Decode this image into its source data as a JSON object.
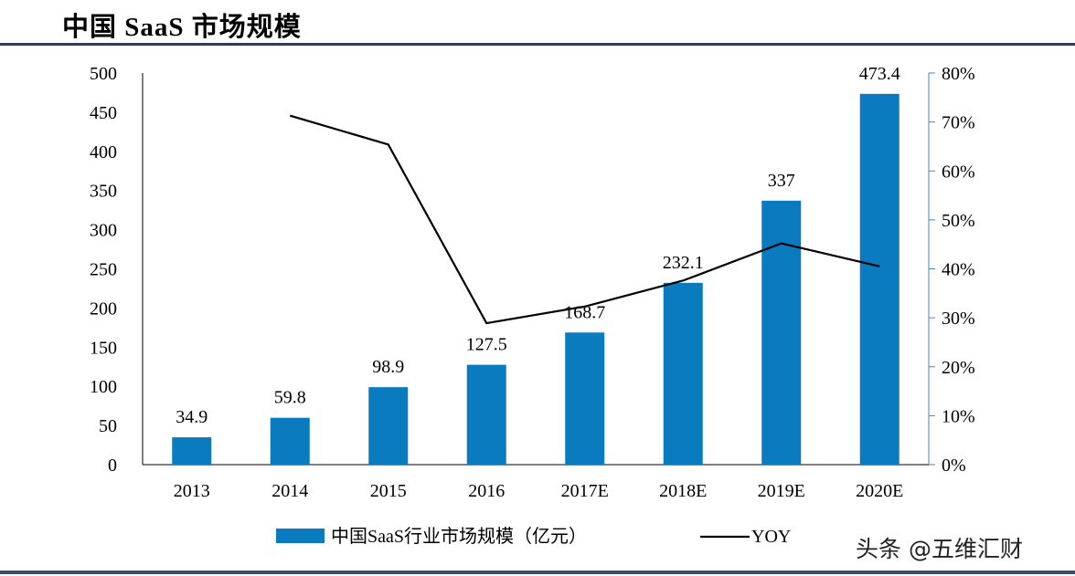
{
  "title": "中国 SaaS 市场规模",
  "watermark": "头条 @五维汇财",
  "chart_data": {
    "type": "bar",
    "categories": [
      "2013",
      "2014",
      "2015",
      "2016",
      "2017E",
      "2018E",
      "2019E",
      "2020E"
    ],
    "series": [
      {
        "name": "中国SaaS行业市场规模（亿元）",
        "type": "bar",
        "axis": "left",
        "color": "#0a7bbf",
        "values": [
          34.9,
          59.8,
          98.9,
          127.5,
          168.7,
          232.1,
          337,
          473.4
        ],
        "labels": [
          "34.9",
          "59.8",
          "98.9",
          "127.5",
          "168.7",
          "232.1",
          "337",
          "473.4"
        ]
      },
      {
        "name": "YOY",
        "type": "line",
        "axis": "right",
        "color": "#000000",
        "values": [
          null,
          71.3,
          65.4,
          28.9,
          32.3,
          37.6,
          45.2,
          40.5
        ]
      }
    ],
    "yleft": {
      "range": [
        0,
        500
      ],
      "ticks": [
        "0",
        "50",
        "100",
        "150",
        "200",
        "250",
        "300",
        "350",
        "400",
        "450",
        "500"
      ]
    },
    "yright": {
      "range": [
        0,
        80
      ],
      "ticks": [
        "0%",
        "10%",
        "20%",
        "30%",
        "40%",
        "50%",
        "60%",
        "70%",
        "80%"
      ]
    },
    "grid": false,
    "legend": "bottom"
  }
}
